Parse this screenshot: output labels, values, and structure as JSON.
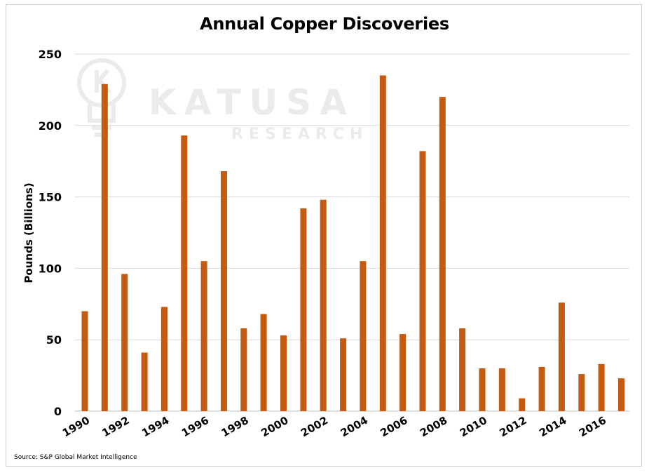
{
  "chart_data": {
    "type": "bar",
    "title": "Annual Copper Discoveries",
    "xlabel": "",
    "ylabel": "Pounds (Billions)",
    "ylim": [
      0,
      250
    ],
    "yticks": [
      0,
      50,
      100,
      150,
      200,
      250
    ],
    "grid": true,
    "bar_color": "#c55a11",
    "categories": [
      1990,
      1991,
      1992,
      1993,
      1994,
      1995,
      1996,
      1997,
      1998,
      1999,
      2000,
      2001,
      2002,
      2003,
      2004,
      2005,
      2006,
      2007,
      2008,
      2009,
      2010,
      2011,
      2012,
      2013,
      2014,
      2015,
      2016,
      2017
    ],
    "x_tick_labels": [
      "1990",
      "1992",
      "1994",
      "1996",
      "1998",
      "2000",
      "2002",
      "2004",
      "2006",
      "2008",
      "2010",
      "2012",
      "2014",
      "2016"
    ],
    "values": [
      70,
      229,
      96,
      41,
      73,
      193,
      105,
      168,
      58,
      68,
      53,
      142,
      148,
      51,
      105,
      235,
      54,
      182,
      220,
      58,
      30,
      30,
      9,
      31,
      76,
      26,
      33,
      23
    ]
  },
  "watermark": {
    "name": "KATUSA",
    "subtitle": "RESEARCH"
  },
  "source": "Source: S&P Global Market Intelligence"
}
